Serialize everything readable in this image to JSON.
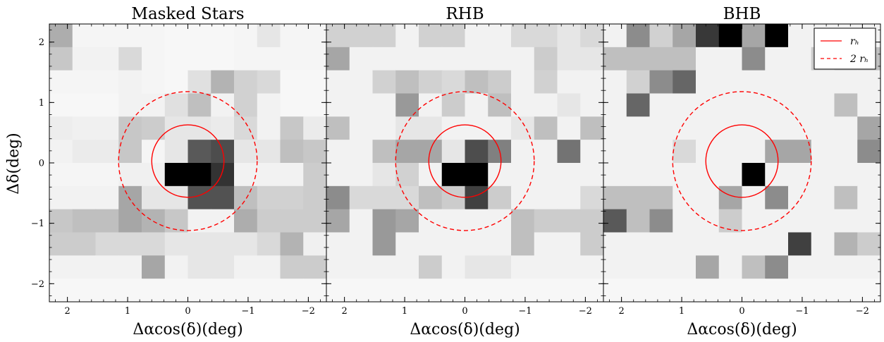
{
  "figure": {
    "ylabel": "Δδ(deg)",
    "legend": {
      "placement": "top-right",
      "entries": [
        {
          "label": "r_h",
          "display": "rₕ",
          "color": "#ff0000",
          "style": "solid"
        },
        {
          "label": "2 r_h",
          "display": "2 rₕ",
          "color": "#ff0000",
          "style": "dashed"
        }
      ]
    }
  },
  "chart_data": [
    {
      "type": "heatmap",
      "title": "Masked Stars",
      "xlabel": "Δαcos(δ)(deg)",
      "xlim": [
        2.3,
        -2.3
      ],
      "ylim": [
        -2.3,
        2.3
      ],
      "x_ticks": [
        2,
        1,
        0,
        -1,
        -2
      ],
      "x_tick_labels": [
        "2",
        "1",
        "0",
        "−1",
        "−2"
      ],
      "y_ticks": [
        -2,
        -1,
        0,
        1,
        2
      ],
      "y_tick_labels": [
        "−2",
        "−1",
        "0",
        "1",
        "2"
      ],
      "bin_size": 0.3833,
      "colormap": "gray_r",
      "grid": false,
      "circles": [
        {
          "center": [
            0,
            0.03
          ],
          "radius": 0.6,
          "style": "solid",
          "color": "#ff0000",
          "label": "r_h"
        },
        {
          "center": [
            0,
            0.03
          ],
          "radius": 1.15,
          "style": "dashed",
          "color": "#ff0000",
          "label": "2 r_h"
        }
      ],
      "intensity": [
        [
          0.32,
          0.04,
          0.04,
          0.04,
          0.04,
          0.03,
          0.03,
          0.03,
          0.04,
          0.1,
          0.04,
          0.04
        ],
        [
          0.22,
          0.05,
          0.05,
          0.15,
          0.04,
          0.03,
          0.03,
          0.03,
          0.04,
          0.04,
          0.04,
          0.04
        ],
        [
          0.04,
          0.04,
          0.04,
          0.05,
          0.04,
          0.03,
          0.12,
          0.3,
          0.18,
          0.15,
          0.03,
          0.03
        ],
        [
          0.03,
          0.03,
          0.03,
          0.05,
          0.05,
          0.12,
          0.25,
          0.05,
          0.18,
          0.05,
          0.03,
          0.03
        ],
        [
          0.07,
          0.06,
          0.06,
          0.22,
          0.2,
          0.1,
          0.1,
          0.08,
          0.15,
          0.05,
          0.22,
          0.08
        ],
        [
          0.05,
          0.08,
          0.08,
          0.22,
          0.04,
          0.1,
          0.65,
          0.7,
          0.1,
          0.1,
          0.25,
          0.22
        ],
        [
          0.04,
          0.04,
          0.04,
          0.06,
          0.06,
          1.0,
          1.0,
          0.8,
          0.05,
          0.05,
          0.05,
          0.2
        ],
        [
          0.05,
          0.05,
          0.05,
          0.35,
          0.1,
          0.1,
          0.68,
          0.68,
          0.25,
          0.18,
          0.18,
          0.2
        ],
        [
          0.22,
          0.25,
          0.25,
          0.35,
          0.3,
          0.22,
          0.05,
          0.05,
          0.32,
          0.2,
          0.2,
          0.2
        ],
        [
          0.2,
          0.2,
          0.15,
          0.15,
          0.15,
          0.1,
          0.1,
          0.1,
          0.1,
          0.15,
          0.3,
          0.06
        ],
        [
          0.05,
          0.05,
          0.05,
          0.05,
          0.35,
          0.05,
          0.1,
          0.1,
          0.05,
          0.05,
          0.2,
          0.2
        ],
        [
          0.03,
          0.03,
          0.03,
          0.03,
          0.03,
          0.03,
          0.03,
          0.03,
          0.03,
          0.03,
          0.03,
          0.03
        ]
      ]
    },
    {
      "type": "heatmap",
      "title": "RHB",
      "xlabel": "Δαcos(δ)(deg)",
      "xlim": [
        2.3,
        -2.3
      ],
      "ylim": [
        -2.3,
        2.3
      ],
      "x_ticks": [
        2,
        1,
        0,
        -1,
        -2
      ],
      "x_tick_labels": [
        "2",
        "1",
        "0",
        "−1",
        "−2"
      ],
      "y_ticks": [
        -2,
        -1,
        0,
        1,
        2
      ],
      "y_tick_labels": [
        "−2",
        "−1",
        "0",
        "1",
        "2"
      ],
      "bin_size": 0.3833,
      "colormap": "gray_r",
      "grid": false,
      "circles": [
        {
          "center": [
            0,
            0.03
          ],
          "radius": 0.6,
          "style": "solid",
          "color": "#ff0000",
          "label": "r_h"
        },
        {
          "center": [
            0,
            0.03
          ],
          "radius": 1.15,
          "style": "dashed",
          "color": "#ff0000",
          "label": "2 r_h"
        }
      ],
      "intensity": [
        [
          0.18,
          0.18,
          0.18,
          0.05,
          0.18,
          0.18,
          0.05,
          0.05,
          0.15,
          0.15,
          0.1,
          0.15
        ],
        [
          0.35,
          0.05,
          0.05,
          0.05,
          0.05,
          0.05,
          0.05,
          0.05,
          0.05,
          0.2,
          0.1,
          0.1
        ],
        [
          0.05,
          0.05,
          0.18,
          0.25,
          0.18,
          0.15,
          0.25,
          0.2,
          0.05,
          0.18,
          0.05,
          0.05
        ],
        [
          0.05,
          0.05,
          0.05,
          0.4,
          0.05,
          0.2,
          0.05,
          0.25,
          0.05,
          0.05,
          0.1,
          0.05
        ],
        [
          0.25,
          0.05,
          0.05,
          0.1,
          0.1,
          0.05,
          0.05,
          0.05,
          0.1,
          0.25,
          0.05,
          0.25
        ],
        [
          0.05,
          0.05,
          0.25,
          0.35,
          0.35,
          0.1,
          0.7,
          0.5,
          0.05,
          0.05,
          0.55,
          0.05
        ],
        [
          0.05,
          0.05,
          0.1,
          0.18,
          0.05,
          1.0,
          1.0,
          0.05,
          0.05,
          0.05,
          0.05,
          0.05
        ],
        [
          0.45,
          0.15,
          0.15,
          0.15,
          0.25,
          0.2,
          0.75,
          0.2,
          0.05,
          0.05,
          0.05,
          0.15
        ],
        [
          0.35,
          0.05,
          0.4,
          0.35,
          0.05,
          0.05,
          0.05,
          0.05,
          0.25,
          0.2,
          0.2,
          0.2
        ],
        [
          0.05,
          0.05,
          0.4,
          0.05,
          0.05,
          0.05,
          0.05,
          0.05,
          0.25,
          0.05,
          0.05,
          0.2
        ],
        [
          0.05,
          0.05,
          0.05,
          0.05,
          0.2,
          0.05,
          0.1,
          0.1,
          0.05,
          0.05,
          0.05,
          0.05
        ],
        [
          0.03,
          0.03,
          0.03,
          0.03,
          0.03,
          0.03,
          0.03,
          0.03,
          0.03,
          0.03,
          0.03,
          0.03
        ]
      ]
    },
    {
      "type": "heatmap",
      "title": "BHB",
      "xlabel": "Δαcos(δ)(deg)",
      "xlim": [
        2.3,
        -2.3
      ],
      "ylim": [
        -2.3,
        2.3
      ],
      "x_ticks": [
        2,
        1,
        0,
        -1,
        -2
      ],
      "x_tick_labels": [
        "2",
        "1",
        "0",
        "−1",
        "−2"
      ],
      "y_ticks": [
        -2,
        -1,
        0,
        1,
        2
      ],
      "y_tick_labels": [
        "−2",
        "−1",
        "0",
        "1",
        "2"
      ],
      "bin_size": 0.3833,
      "colormap": "gray_r",
      "grid": false,
      "circles": [
        {
          "center": [
            0,
            0.03
          ],
          "radius": 0.6,
          "style": "solid",
          "color": "#ff0000",
          "label": "r_h"
        },
        {
          "center": [
            0,
            0.03
          ],
          "radius": 1.15,
          "style": "dashed",
          "color": "#ff0000",
          "label": "2 r_h"
        }
      ],
      "intensity": [
        [
          0.05,
          0.45,
          0.18,
          0.35,
          0.78,
          1.0,
          0.35,
          1.0,
          0.05,
          0.05,
          0.05,
          0.05
        ],
        [
          0.25,
          0.25,
          0.25,
          0.25,
          0.05,
          0.05,
          0.45,
          0.05,
          0.05,
          0.2,
          0.25,
          0.25
        ],
        [
          0.05,
          0.18,
          0.45,
          0.6,
          0.05,
          0.05,
          0.05,
          0.05,
          0.05,
          0.05,
          0.05,
          0.05
        ],
        [
          0.05,
          0.6,
          0.05,
          0.05,
          0.05,
          0.05,
          0.05,
          0.05,
          0.05,
          0.05,
          0.25,
          0.05
        ],
        [
          0.05,
          0.05,
          0.05,
          0.05,
          0.05,
          0.05,
          0.05,
          0.05,
          0.05,
          0.05,
          0.05,
          0.35
        ],
        [
          0.05,
          0.05,
          0.05,
          0.15,
          0.05,
          0.05,
          0.05,
          0.35,
          0.35,
          0.05,
          0.05,
          0.45
        ],
        [
          0.05,
          0.05,
          0.05,
          0.05,
          0.05,
          0.05,
          1.0,
          0.05,
          0.05,
          0.05,
          0.05,
          0.05
        ],
        [
          0.25,
          0.25,
          0.25,
          0.05,
          0.05,
          0.35,
          0.05,
          0.45,
          0.05,
          0.05,
          0.25,
          0.05
        ],
        [
          0.65,
          0.25,
          0.45,
          0.05,
          0.05,
          0.2,
          0.05,
          0.05,
          0.05,
          0.05,
          0.05,
          0.05
        ],
        [
          0.05,
          0.05,
          0.05,
          0.05,
          0.05,
          0.05,
          0.05,
          0.05,
          0.75,
          0.05,
          0.3,
          0.2
        ],
        [
          0.05,
          0.05,
          0.05,
          0.05,
          0.35,
          0.05,
          0.25,
          0.45,
          0.05,
          0.05,
          0.05,
          0.05
        ],
        [
          0.03,
          0.03,
          0.03,
          0.03,
          0.03,
          0.03,
          0.03,
          0.03,
          0.03,
          0.03,
          0.03,
          0.03
        ]
      ]
    }
  ]
}
